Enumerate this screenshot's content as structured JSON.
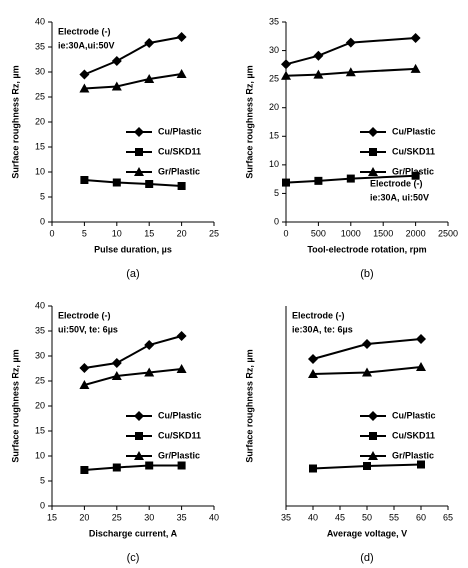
{
  "chart_data": [
    {
      "type": "line",
      "caption": "(a)",
      "annotation": [
        "Electrode (-)",
        "ie:30A,ui:50V"
      ],
      "annotation_corner": "top-left",
      "xlabel": "Pulse duration, µs",
      "ylabel": "Surface roughness Rz, µm",
      "x": [
        5,
        10,
        15,
        20
      ],
      "xlim": [
        0,
        25
      ],
      "xticks": [
        0,
        5,
        10,
        15,
        20,
        25
      ],
      "ylim": [
        0,
        40
      ],
      "yticks": [
        0,
        5,
        10,
        15,
        20,
        25,
        30,
        35,
        40
      ],
      "series": [
        {
          "name": "Cu/Plastic",
          "color": "#000000",
          "marker": "diamond",
          "values": [
            29.5,
            32.2,
            35.8,
            37
          ]
        },
        {
          "name": "Cu/SKD11",
          "color": "#000000",
          "marker": "square",
          "values": [
            8.4,
            7.9,
            7.6,
            7.2
          ]
        },
        {
          "name": "Gr/Plastic",
          "color": "#000000",
          "marker": "triangle",
          "values": [
            26.7,
            27.1,
            28.6,
            29.6
          ]
        }
      ]
    },
    {
      "type": "line",
      "caption": "(b)",
      "annotation": [
        "Electrode (-)",
        "ie:30A, ui:50V"
      ],
      "annotation_corner": "bottom-right",
      "xlabel": "Tool-electrode rotation, rpm",
      "ylabel": "Surface roughness Rz, µm",
      "x": [
        0,
        500,
        1000,
        2000
      ],
      "xlim": [
        0,
        2500
      ],
      "xticks": [
        0,
        500,
        1000,
        1500,
        2000,
        2500
      ],
      "ylim": [
        0,
        35
      ],
      "yticks": [
        0,
        5,
        10,
        15,
        20,
        25,
        30,
        35
      ],
      "series": [
        {
          "name": "Cu/Plastic",
          "color": "#000000",
          "marker": "diamond",
          "values": [
            27.6,
            29.1,
            31.4,
            32.2
          ]
        },
        {
          "name": "Cu/SKD11",
          "color": "#000000",
          "marker": "square",
          "values": [
            6.9,
            7.2,
            7.6,
            8.1
          ]
        },
        {
          "name": "Gr/Plastic",
          "color": "#000000",
          "marker": "triangle",
          "values": [
            25.6,
            25.8,
            26.2,
            26.8
          ]
        }
      ]
    },
    {
      "type": "line",
      "caption": "(c)",
      "annotation": [
        "Electrode (-)",
        "ui:50V, te: 6µs"
      ],
      "annotation_corner": "top-left",
      "xlabel": "Discharge current, A",
      "ylabel": "Surface roughness Rz, µm",
      "x": [
        20,
        25,
        30,
        35
      ],
      "xlim": [
        15,
        40
      ],
      "xticks": [
        15,
        20,
        25,
        30,
        35,
        40
      ],
      "ylim": [
        0,
        40
      ],
      "yticks": [
        0,
        5,
        10,
        15,
        20,
        25,
        30,
        35,
        40
      ],
      "series": [
        {
          "name": "Cu/Plastic",
          "color": "#000000",
          "marker": "diamond",
          "values": [
            27.6,
            28.6,
            32.2,
            34
          ]
        },
        {
          "name": "Cu/SKD11",
          "color": "#000000",
          "marker": "square",
          "values": [
            7.2,
            7.7,
            8.1,
            8.1
          ]
        },
        {
          "name": "Gr/Plastic",
          "color": "#000000",
          "marker": "triangle",
          "values": [
            24.2,
            26,
            26.7,
            27.4
          ]
        }
      ]
    },
    {
      "type": "line",
      "caption": "(d)",
      "annotation": [
        "Electrode (-)",
        "ie:30A, te: 6µs"
      ],
      "annotation_corner": "top-left",
      "xlabel": "Average voltage, V",
      "ylabel": "Surface roughness Rz, µm",
      "x": [
        40,
        50,
        60
      ],
      "xlim": [
        35,
        65
      ],
      "xticks": [
        35,
        40,
        45,
        50,
        55,
        60,
        65
      ],
      "ylim": [
        0,
        40
      ],
      "series": [
        {
          "name": "Cu/Plastic",
          "color": "#000000",
          "marker": "diamond",
          "values": [
            29.4,
            32.4,
            33.4
          ]
        },
        {
          "name": "Cu/SKD11",
          "color": "#000000",
          "marker": "square",
          "values": [
            7.5,
            8,
            8.3
          ]
        },
        {
          "name": "Gr/Plastic",
          "color": "#000000",
          "marker": "triangle",
          "values": [
            26.4,
            26.7,
            27.8
          ]
        }
      ]
    }
  ]
}
